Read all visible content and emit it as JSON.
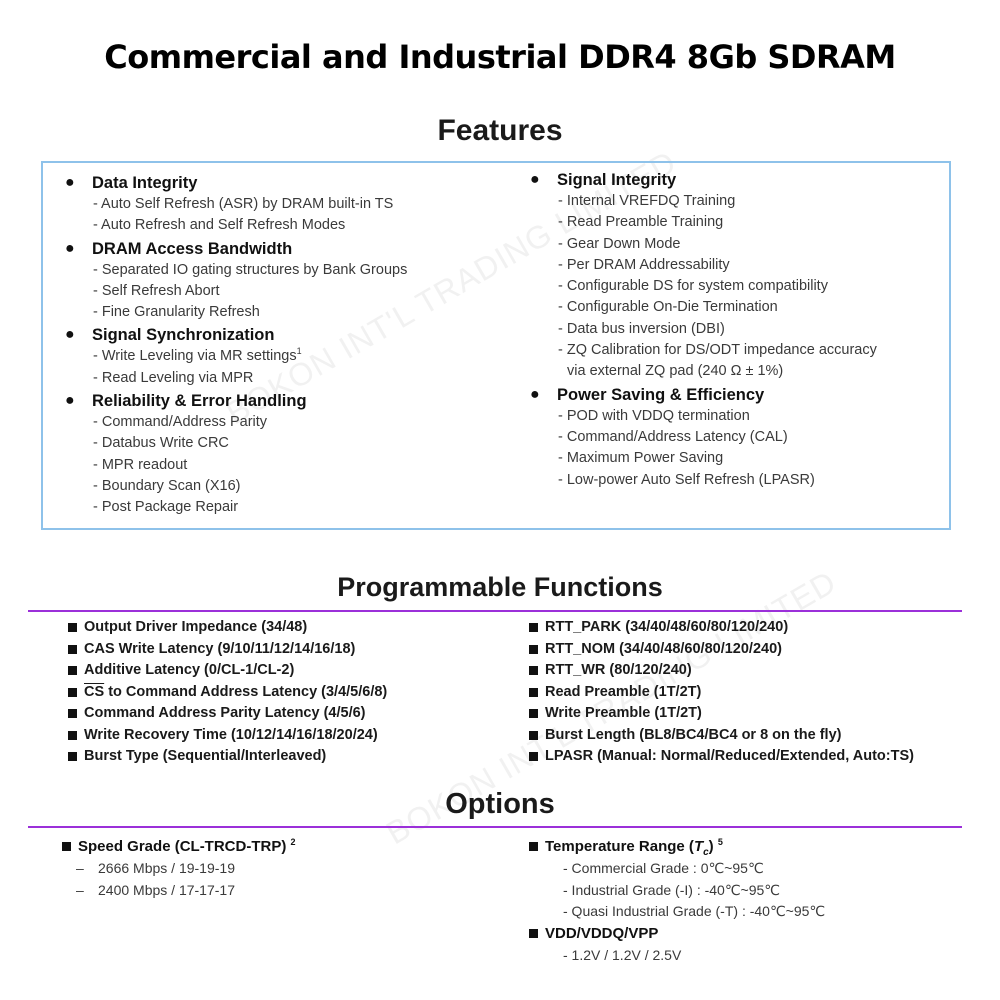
{
  "title": "Commercial and Industrial DDR4 8Gb SDRAM",
  "watermark": "BOKON INT'L TRADING LIMITED",
  "features": {
    "heading": "Features",
    "bullet": "●",
    "left": [
      {
        "title": "Data Integrity",
        "items": [
          "- Auto Self Refresh (ASR) by DRAM built-in TS",
          "- Auto Refresh and Self Refresh Modes"
        ]
      },
      {
        "title": "DRAM Access Bandwidth",
        "items": [
          "- Separated IO gating structures by Bank Groups",
          "- Self Refresh Abort",
          "- Fine Granularity Refresh"
        ]
      },
      {
        "title": "Signal Synchronization",
        "items": [
          "- Write Leveling via MR settings",
          "- Read Leveling via MPR"
        ],
        "sup": "1"
      },
      {
        "title": "Reliability & Error Handling",
        "items": [
          "- Command/Address Parity",
          "- Databus Write CRC",
          "- MPR readout",
          "- Boundary Scan (X16)",
          "- Post Package Repair"
        ]
      }
    ],
    "right": [
      {
        "title": "Signal Integrity",
        "items": [
          "- Internal VREFDQ Training",
          "- Read Preamble Training",
          "- Gear Down Mode",
          "- Per DRAM Addressability",
          "- Configurable DS for system compatibility",
          "- Configurable On-Die Termination",
          "- Data bus inversion (DBI)",
          "- ZQ Calibration for DS/ODT impedance accuracy"
        ],
        "cont": "via external ZQ pad (240 Ω  ± 1%)"
      },
      {
        "title": "Power Saving & Efficiency",
        "items": [
          "- POD with VDDQ termination",
          "- Command/Address Latency (CAL)",
          "- Maximum Power Saving",
          "- Low-power Auto Self Refresh (LPASR)"
        ]
      }
    ]
  },
  "programmable": {
    "heading": "Programmable Functions",
    "left": [
      "Output Driver Impedance (34/48)",
      "CAS Write Latency (9/10/11/12/14/16/18)",
      "Additive Latency (0/CL-1/CL-2)",
      "to Command Address Latency (3/4/5/6/8)",
      "Command Address Parity Latency (4/5/6)",
      "Write Recovery Time (10/12/14/16/18/20/24)",
      "Burst Type (Sequential/Interleaved)"
    ],
    "cs_label": "CS",
    "right": [
      "RTT_PARK (34/40/48/60/80/120/240)",
      "RTT_NOM (34/40/48/60/80/120/240)",
      "RTT_WR (80/120/240)",
      "Read Preamble (1T/2T)",
      "Write Preamble (1T/2T)",
      "Burst Length (BL8/BC4/BC4 or 8 on the fly)",
      "LPASR (Manual: Normal/Reduced/Extended, Auto:TS)"
    ]
  },
  "options": {
    "heading": "Options",
    "speed": {
      "title": "Speed Grade (CL-TRCD-TRP)",
      "sup": "2",
      "dash": "–",
      "items": [
        "2666 Mbps / 19-19-19",
        "2400 Mbps / 17-17-17"
      ]
    },
    "temp": {
      "title_pre": "Temperature Range (",
      "title_t": "T",
      "title_c": "c",
      "title_post": ")",
      "sup": "5",
      "items": [
        "- Commercial Grade : 0℃~95℃",
        "- Industrial Grade (-I) : -40℃~95℃",
        "- Quasi Industrial Grade (-T) : -40℃~95℃"
      ]
    },
    "vdd": {
      "title": "VDD/VDDQ/VPP",
      "items": [
        "- 1.2V / 1.2V / 2.5V"
      ]
    }
  }
}
